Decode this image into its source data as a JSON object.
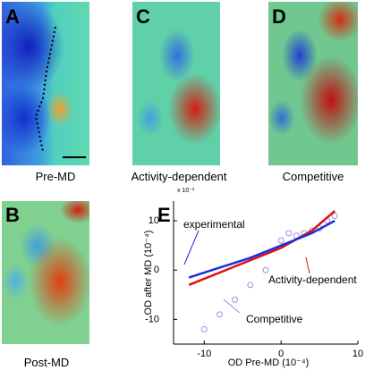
{
  "panels": [
    {
      "label": "A",
      "caption": "Pre-MD"
    },
    {
      "label": "C",
      "caption": "Activity-dependent"
    },
    {
      "label": "D",
      "caption": "Competitive"
    },
    {
      "label": "B",
      "caption": "Post-MD"
    }
  ],
  "chart_data": {
    "type": "line",
    "label": "E",
    "scale_note": "x 10⁻³",
    "xlabel": "OD Pre-MD  (10⁻⁴)",
    "ylabel": "OD after MD  (10⁻⁴)",
    "xlim": [
      -14,
      10
    ],
    "ylim": [
      -15,
      14
    ],
    "xticks": [
      -10,
      0,
      10
    ],
    "yticks": [
      -10,
      0,
      10
    ],
    "series": [
      {
        "name": "experimental",
        "color": "#1a2fe0",
        "x": [
          -12,
          -8,
          -4,
          0,
          4,
          7
        ],
        "values": [
          -1.5,
          0.5,
          2.5,
          5,
          7.5,
          10
        ]
      },
      {
        "name": "Activity-dependent",
        "color": "#e01010",
        "x": [
          -12,
          -8,
          -4,
          0,
          4,
          7
        ],
        "values": [
          -3,
          -0.5,
          2,
          4.5,
          8,
          12
        ]
      },
      {
        "name": "Competitive",
        "color": "#9a90e0",
        "marker": "circle",
        "x": [
          -10,
          -8,
          -6,
          -4,
          -2,
          0,
          1,
          2,
          3,
          4,
          5,
          6,
          7
        ],
        "values": [
          -12,
          -9,
          -6,
          -3,
          0,
          6,
          7.5,
          7,
          7.5,
          8,
          8.5,
          10,
          11
        ]
      }
    ]
  }
}
